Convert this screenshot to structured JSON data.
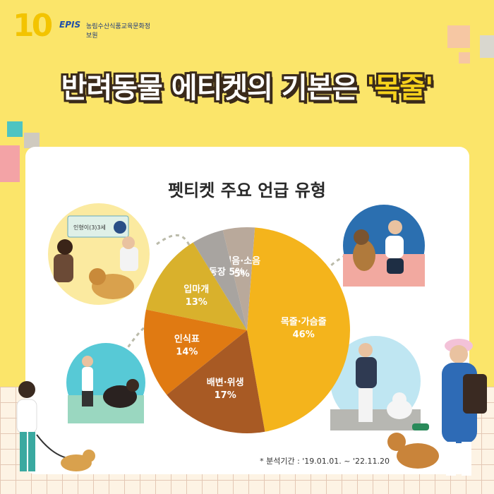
{
  "logo": {
    "ten": "10",
    "epis": "EPIS",
    "org": "농림수산식품교육문화정보원"
  },
  "headline": {
    "prefix": "반려동물 에티켓의 기본은 ",
    "highlight": "'목줄'"
  },
  "chart_data": {
    "type": "pie",
    "title": "펫티켓 주요 언급 유형",
    "slices": [
      {
        "name": "목줄·가슴줄",
        "value": 46,
        "label": "46%",
        "color": "#f4b41c"
      },
      {
        "name": "짖음·소음",
        "value": 5,
        "label": "5%",
        "color": "#b9a99b"
      },
      {
        "name": "이동장",
        "value": 5,
        "label": "5%",
        "color": "#a8a4a0"
      },
      {
        "name": "입마개",
        "value": 13,
        "label": "13%",
        "color": "#d9b12c"
      },
      {
        "name": "인식표",
        "value": 14,
        "label": "14%",
        "color": "#e07a12"
      },
      {
        "name": "배변·위생",
        "value": 17,
        "label": "17%",
        "color": "#a85a24"
      }
    ]
  },
  "illustrations": {
    "id_tag_sign": "인형이(3)3세"
  },
  "footnote": "* 분석기간 : '19.01.01. ~ '22.11.20",
  "colors": {
    "background": "#fbe56a",
    "card": "#ffffff",
    "headline_highlight": "#f7d21c"
  }
}
